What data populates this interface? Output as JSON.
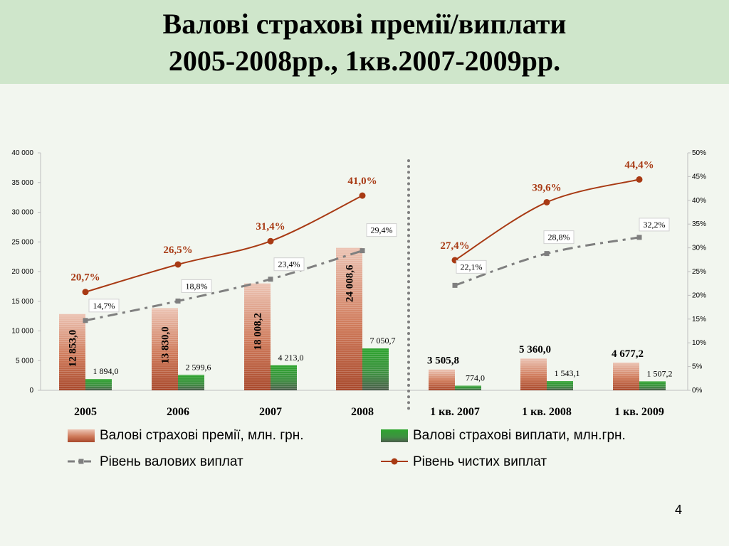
{
  "title": {
    "line1": "Валові страхові премії/виплати",
    "line2": "2005-2008рр., 1кв.2007-2009рр."
  },
  "page_number": "4",
  "legend": [
    "Валові страхові премії, млн. грн.",
    "Валові страхові виплати, млн.грн.",
    "Рівень валових виплат",
    "Рівень чистих виплат"
  ],
  "colors": {
    "premiums": "#c96a4e",
    "payouts": "#2f8f35",
    "gross_level": "#7f7f7f",
    "net_level": "#a83a14",
    "divider": "#808080"
  },
  "chart_data": {
    "type": "bar",
    "categories": [
      "2005",
      "2006",
      "2007",
      "2008",
      "1 кв. 2007",
      "1 кв. 2008",
      "1 кв. 2009"
    ],
    "series": [
      {
        "name": "Валові страхові премії, млн. грн.",
        "kind": "bar",
        "axis": "left",
        "values": [
          12853.0,
          13830.0,
          18008.2,
          24008.6,
          3505.8,
          5360.0,
          4677.2
        ],
        "labels": [
          "12 853,0",
          "13 830,0",
          "18 008,2",
          "24 008,6",
          "3 505,8",
          "5 360,0",
          "4 677,2"
        ]
      },
      {
        "name": "Валові страхові виплати, млн.грн.",
        "kind": "bar",
        "axis": "left",
        "values": [
          1894.0,
          2599.6,
          4213.0,
          7050.7,
          774.0,
          1543.1,
          1507.2
        ],
        "labels": [
          "1 894,0",
          "2 599,6",
          "4 213,0",
          "7 050,7",
          "774,0",
          "1 543,1",
          "1 507,2"
        ]
      },
      {
        "name": "Рівень валових виплат",
        "kind": "line",
        "axis": "right",
        "values": [
          14.7,
          18.8,
          23.4,
          29.4,
          22.1,
          28.8,
          32.2
        ],
        "labels": [
          "14,7%",
          "18,8%",
          "23,4%",
          "29,4%",
          "22,1%",
          "28,8%",
          "32,2%"
        ]
      },
      {
        "name": "Рівень чистих виплат",
        "kind": "line",
        "axis": "right",
        "values": [
          20.7,
          26.5,
          31.4,
          41.0,
          27.4,
          39.6,
          44.4
        ],
        "labels": [
          "20,7%",
          "26,5%",
          "31,4%",
          "41,0%",
          "27,4%",
          "39,6%",
          "44,4%"
        ]
      }
    ],
    "y_left": {
      "ylim": [
        0,
        40000
      ],
      "ticks": [
        "0",
        "5 000",
        "10 000",
        "15 000",
        "20 000",
        "25 000",
        "30 000",
        "35 000",
        "40 000"
      ]
    },
    "y_right": {
      "ylim": [
        0,
        50
      ],
      "ticks": [
        "0%",
        "5%",
        "10%",
        "15%",
        "20%",
        "25%",
        "30%",
        "35%",
        "40%",
        "45%",
        "50%"
      ]
    },
    "grid": false,
    "legend_position": "bottom"
  }
}
